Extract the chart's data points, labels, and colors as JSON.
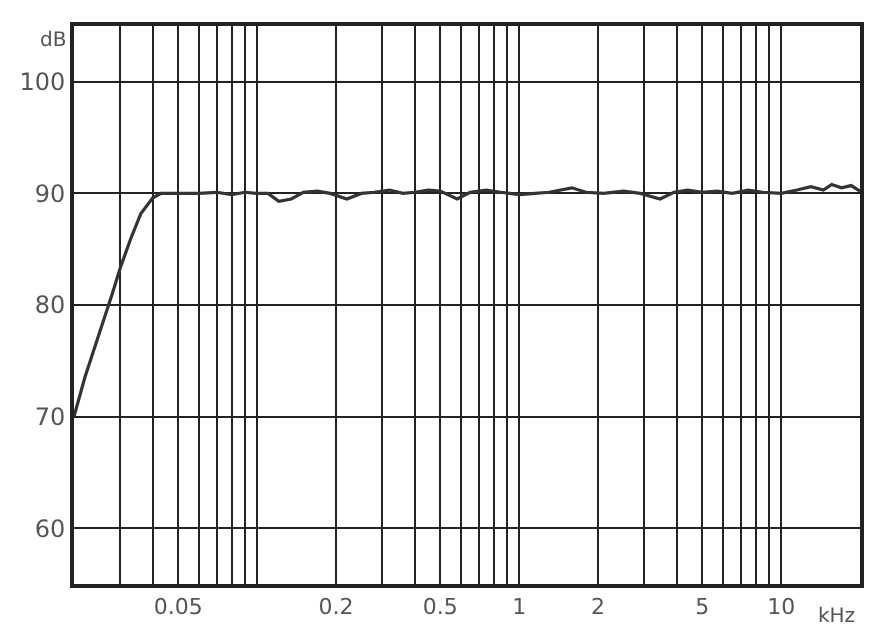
{
  "chart_data": {
    "type": "line",
    "xlabel": "kHz",
    "ylabel": "dB",
    "log": "x",
    "grid": true,
    "legend": false,
    "marker": "none",
    "line_style": "solid",
    "xlim": [
      0.02,
      20
    ],
    "ylim": [
      55,
      105
    ],
    "xticks": [
      {
        "value": 0.03,
        "label": null
      },
      {
        "value": 0.04,
        "label": null
      },
      0.05,
      {
        "value": 0.06,
        "label": null
      },
      {
        "value": 0.07,
        "label": null
      },
      {
        "value": 0.08,
        "label": null
      },
      {
        "value": 0.09,
        "label": null
      },
      {
        "value": 0.1,
        "label": null
      },
      0.2,
      {
        "value": 0.3,
        "label": null
      },
      {
        "value": 0.4,
        "label": null
      },
      0.5,
      {
        "value": 0.6,
        "label": null
      },
      {
        "value": 0.7,
        "label": null
      },
      {
        "value": 0.8,
        "label": null
      },
      {
        "value": 0.9,
        "label": null
      },
      1,
      2,
      {
        "value": 3,
        "label": null
      },
      {
        "value": 4,
        "label": null
      },
      5,
      {
        "value": 6,
        "label": null
      },
      {
        "value": 7,
        "label": null
      },
      {
        "value": 8,
        "label": null
      },
      {
        "value": 9,
        "label": null
      },
      10
    ],
    "yticks": [
      60,
      70,
      80,
      90,
      100
    ],
    "series": [
      {
        "color": "#333333",
        "x": [
          0.02,
          0.022,
          0.025,
          0.028,
          0.03,
          0.033,
          0.036,
          0.04,
          0.043,
          0.046,
          0.05,
          0.06,
          0.07,
          0.08,
          0.09,
          0.1,
          0.11,
          0.121,
          0.135,
          0.15,
          0.17,
          0.19,
          0.22,
          0.25,
          0.28,
          0.32,
          0.36,
          0.4,
          0.45,
          0.5,
          0.58,
          0.65,
          0.75,
          0.85,
          1.0,
          1.15,
          1.3,
          1.59,
          1.8,
          2.1,
          2.5,
          2.9,
          3.45,
          3.9,
          4.4,
          5.0,
          5.7,
          6.5,
          7.5,
          8.5,
          10,
          11.5,
          13,
          14.5,
          15.6,
          17,
          18.5,
          20
        ],
        "values": [
          70,
          73.5,
          77.5,
          81,
          83.3,
          86,
          88.2,
          89.6,
          90,
          90,
          90,
          90,
          90.1,
          89.9,
          90.1,
          90,
          90,
          89.3,
          89.5,
          90.1,
          90.2,
          90,
          89.5,
          90,
          90.1,
          90.3,
          90,
          90.1,
          90.3,
          90.2,
          89.5,
          90.1,
          90.3,
          90.1,
          89.9,
          90,
          90.1,
          90.5,
          90.1,
          90,
          90.2,
          90,
          89.5,
          90.1,
          90.3,
          90.1,
          90.2,
          90,
          90.3,
          90.1,
          90,
          90.3,
          90.6,
          90.3,
          90.8,
          90.5,
          90.7,
          90.2
        ]
      }
    ]
  }
}
